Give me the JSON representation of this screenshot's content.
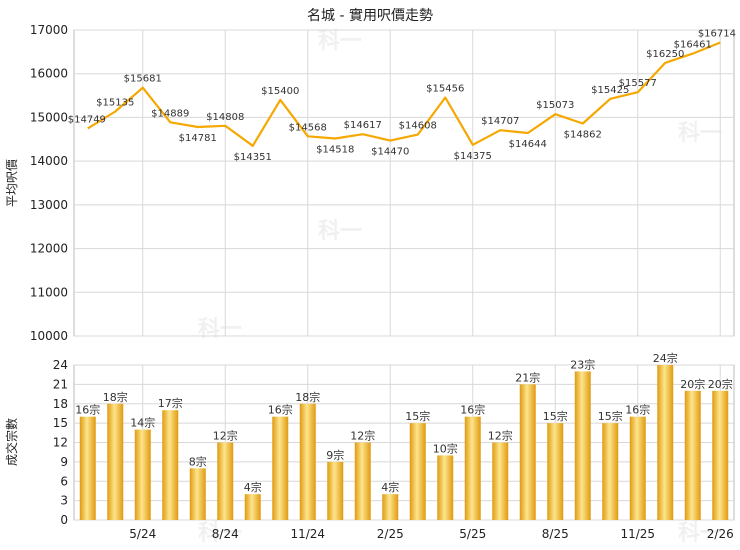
{
  "title": "名城 - 實用呎價走勢",
  "watermark_text": "科一",
  "colors": {
    "line": "#f5a800",
    "bar_dark": "#e09a10",
    "bar_light": "#fde58c",
    "grid": "#d8d8d8",
    "axis_text": "#222222",
    "label_text": "#333333"
  },
  "chart_data": [
    {
      "type": "line",
      "ylabel": "平均呎價",
      "ylim": [
        10000,
        17000
      ],
      "yticks": [
        "10000",
        "11000",
        "12000",
        "13000",
        "14000",
        "15000",
        "16000",
        "17000"
      ],
      "grid": true,
      "point_labels": [
        "$14749",
        "$15135",
        "$15681",
        "$14889",
        "$14781",
        "$14808",
        "$14351",
        "$15400",
        "$14568",
        "$14518",
        "$14617",
        "$14470",
        "$14608",
        "$15456",
        "$14375",
        "$14707",
        "$14644",
        "$15073",
        "$14862",
        "$15425",
        "$15577",
        "$16250",
        "$16461",
        "$16714"
      ],
      "values": [
        14749,
        15135,
        15681,
        14889,
        14781,
        14808,
        14351,
        15400,
        14568,
        14518,
        14617,
        14470,
        14608,
        15456,
        14375,
        14707,
        14644,
        15073,
        14862,
        15425,
        15577,
        16250,
        16461,
        16714
      ]
    },
    {
      "type": "bar",
      "ylabel": "成交宗數",
      "ylim": [
        0,
        24
      ],
      "yticks": [
        "0",
        "3",
        "6",
        "9",
        "12",
        "15",
        "18",
        "21",
        "24"
      ],
      "grid": true,
      "xtick_labels": [
        "5/24",
        "8/24",
        "11/24",
        "2/25",
        "5/25",
        "8/25",
        "11/25",
        "2/26"
      ],
      "xtick_month_index": [
        2,
        5,
        8,
        11,
        14,
        17,
        20,
        23
      ],
      "bar_labels": [
        "16宗",
        "18宗",
        "14宗",
        "17宗",
        "8宗",
        "12宗",
        "4宗",
        "16宗",
        "18宗",
        "9宗",
        "12宗",
        "4宗",
        "15宗",
        "10宗",
        "16宗",
        "12宗",
        "21宗",
        "15宗",
        "23宗",
        "15宗",
        "16宗",
        "24宗",
        "20宗",
        "20宗"
      ],
      "values": [
        16,
        18,
        14,
        17,
        8,
        12,
        4,
        16,
        18,
        9,
        12,
        4,
        15,
        10,
        16,
        12,
        21,
        15,
        23,
        15,
        16,
        24,
        20,
        20
      ]
    }
  ]
}
